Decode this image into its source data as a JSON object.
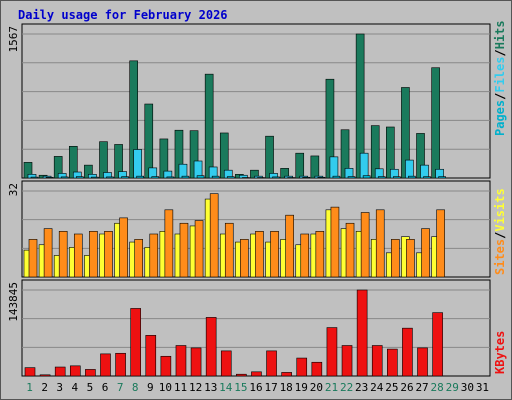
{
  "title": "Daily usage for February 2026",
  "colors": {
    "hits": "#1a7a5c",
    "files": "#33ccee",
    "pages": "#00b0cc",
    "visits": "#ffff33",
    "sites": "#ff8c1a",
    "kbytes": "#ee1111",
    "weekend_day": "#1a7a5c",
    "weekday_day": "#000000"
  },
  "chart_data": [
    {
      "type": "bar",
      "name": "hits-files-pages",
      "y_max_label": "1567",
      "ylim": [
        0,
        1567
      ],
      "legend": [
        "Pages",
        "Files",
        "Hits"
      ],
      "categories": [
        "1",
        "2",
        "3",
        "4",
        "5",
        "6",
        "7",
        "8",
        "9",
        "10",
        "11",
        "12",
        "13",
        "14",
        "15",
        "16",
        "17",
        "18",
        "19",
        "20",
        "21",
        "22",
        "23",
        "24",
        "25",
        "26",
        "27",
        "28",
        "29",
        "30",
        "31"
      ],
      "series": [
        {
          "name": "Hits",
          "values": [
            170,
            30,
            235,
            345,
            140,
            395,
            365,
            1275,
            805,
            425,
            520,
            515,
            1130,
            490,
            40,
            85,
            455,
            105,
            270,
            240,
            1075,
            525,
            1567,
            570,
            555,
            985,
            485,
            1200,
            0,
            0,
            0
          ]
        },
        {
          "name": "Files",
          "values": [
            40,
            20,
            50,
            65,
            40,
            60,
            70,
            310,
            110,
            75,
            150,
            185,
            120,
            85,
            30,
            20,
            50,
            20,
            20,
            20,
            230,
            105,
            270,
            100,
            95,
            195,
            140,
            95,
            0,
            0,
            0
          ]
        },
        {
          "name": "Pages",
          "values": [
            10,
            8,
            12,
            15,
            10,
            12,
            15,
            20,
            15,
            12,
            20,
            25,
            20,
            15,
            5,
            5,
            12,
            5,
            8,
            8,
            20,
            15,
            25,
            15,
            15,
            20,
            15,
            15,
            0,
            0,
            0
          ]
        }
      ]
    },
    {
      "type": "bar",
      "name": "visits-sites",
      "y_max_label": "32",
      "ylim": [
        0,
        32
      ],
      "legend": [
        "Sites",
        "/",
        "Visits"
      ],
      "categories": [
        "1",
        "2",
        "3",
        "4",
        "5",
        "6",
        "7",
        "8",
        "9",
        "10",
        "11",
        "12",
        "13",
        "14",
        "15",
        "16",
        "17",
        "18",
        "19",
        "20",
        "21",
        "22",
        "23",
        "24",
        "25",
        "26",
        "27",
        "28",
        "29",
        "30",
        "31"
      ],
      "series": [
        {
          "name": "Visits",
          "values": [
            10,
            12,
            8,
            11,
            8,
            16,
            20,
            13,
            11,
            17,
            16,
            19,
            29,
            16,
            13,
            16,
            13,
            14,
            12,
            16,
            25,
            18,
            17,
            14,
            9,
            15,
            9,
            15,
            0,
            0,
            0
          ]
        },
        {
          "name": "Sites",
          "values": [
            14,
            18,
            17,
            16,
            17,
            17,
            22,
            14,
            16,
            25,
            20,
            21,
            31,
            20,
            14,
            17,
            17,
            23,
            16,
            17,
            26,
            20,
            24,
            25,
            14,
            14,
            18,
            25,
            0,
            0,
            0
          ]
        }
      ]
    },
    {
      "type": "bar",
      "name": "kbytes",
      "y_max_label": "143845",
      "ylim": [
        0,
        143845
      ],
      "legend": [
        "KBytes"
      ],
      "categories": [
        "1",
        "2",
        "3",
        "4",
        "5",
        "6",
        "7",
        "8",
        "9",
        "10",
        "11",
        "12",
        "13",
        "14",
        "15",
        "16",
        "17",
        "18",
        "19",
        "20",
        "21",
        "22",
        "23",
        "24",
        "25",
        "26",
        "27",
        "28",
        "29",
        "30",
        "31"
      ],
      "series": [
        {
          "name": "KBytes",
          "values": [
            14000,
            2000,
            15000,
            17000,
            11000,
            37000,
            38000,
            113000,
            68000,
            33000,
            51000,
            47000,
            98000,
            42000,
            3000,
            7000,
            42000,
            6000,
            30000,
            23000,
            81000,
            51000,
            143845,
            51000,
            45000,
            80000,
            47000,
            106000,
            0,
            0,
            0
          ]
        }
      ]
    }
  ]
}
